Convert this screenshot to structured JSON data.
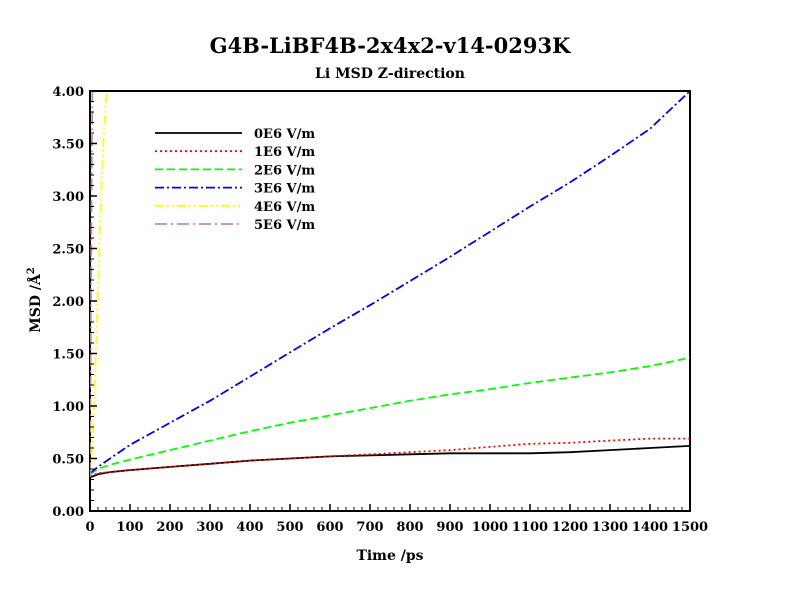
{
  "chart_data": {
    "type": "line",
    "title": "G4B-LiBF4B-2x4x2-v14-0293K",
    "subtitle": "Li MSD Z-direction",
    "xlabel": "Time /ps",
    "ylabel_main": "MSD /Å",
    "ylabel_sup": "2",
    "xlim": [
      0,
      1500
    ],
    "ylim": [
      0,
      4.0
    ],
    "xticks": [
      0,
      100,
      200,
      300,
      400,
      500,
      600,
      700,
      800,
      900,
      1000,
      1100,
      1200,
      1300,
      1400,
      1500
    ],
    "yticks": [
      "0.00",
      "0.50",
      "1.00",
      "1.50",
      "2.00",
      "2.50",
      "3.00",
      "3.50",
      "4.00"
    ],
    "grid": false,
    "legend_position": "top-left",
    "series": [
      {
        "name": "0E6 V/m",
        "color": "#000000",
        "dash": "solid",
        "x": [
          0,
          20,
          50,
          100,
          200,
          300,
          400,
          500,
          600,
          700,
          800,
          900,
          1000,
          1100,
          1200,
          1300,
          1400,
          1500
        ],
        "y": [
          0.32,
          0.35,
          0.37,
          0.39,
          0.42,
          0.45,
          0.48,
          0.5,
          0.52,
          0.53,
          0.54,
          0.55,
          0.55,
          0.55,
          0.56,
          0.58,
          0.6,
          0.62
        ]
      },
      {
        "name": "1E6 V/m",
        "color": "#ff0000",
        "dash": "dotted",
        "x": [
          0,
          20,
          50,
          100,
          200,
          300,
          400,
          500,
          600,
          700,
          800,
          900,
          1000,
          1100,
          1200,
          1300,
          1400,
          1500
        ],
        "y": [
          0.33,
          0.36,
          0.37,
          0.39,
          0.42,
          0.45,
          0.48,
          0.5,
          0.52,
          0.54,
          0.56,
          0.58,
          0.61,
          0.64,
          0.65,
          0.67,
          0.69,
          0.69
        ]
      },
      {
        "name": "2E6 V/m",
        "color": "#00ff00",
        "dash": "dashed",
        "x": [
          0,
          20,
          50,
          100,
          200,
          300,
          400,
          500,
          600,
          700,
          800,
          900,
          1000,
          1100,
          1200,
          1300,
          1400,
          1500
        ],
        "y": [
          0.35,
          0.4,
          0.44,
          0.49,
          0.58,
          0.67,
          0.76,
          0.84,
          0.91,
          0.98,
          1.05,
          1.11,
          1.16,
          1.22,
          1.27,
          1.32,
          1.38,
          1.46
        ]
      },
      {
        "name": "3E6 V/m",
        "color": "#0000ff",
        "dash": "dashdot",
        "x": [
          0,
          20,
          50,
          100,
          200,
          300,
          400,
          500,
          600,
          700,
          800,
          900,
          1000,
          1100,
          1200,
          1300,
          1400,
          1500
        ],
        "y": [
          0.36,
          0.42,
          0.5,
          0.63,
          0.84,
          1.05,
          1.28,
          1.51,
          1.74,
          1.96,
          2.19,
          2.42,
          2.66,
          2.9,
          3.13,
          3.38,
          3.64,
          4.0
        ]
      },
      {
        "name": "4E6 V/m",
        "color": "#ffff00",
        "dash": "dashdotdot",
        "x": [
          0,
          5,
          10,
          15,
          20,
          25,
          30,
          35,
          40,
          43
        ],
        "y": [
          0.33,
          0.55,
          0.95,
          1.5,
          2.1,
          2.7,
          3.2,
          3.6,
          3.9,
          4.0
        ]
      },
      {
        "name": "5E6 V/m",
        "color": "#c09090",
        "dash": "longdashdot",
        "x": [
          0,
          1,
          2,
          3,
          4,
          5,
          6
        ],
        "y": [
          0.33,
          1.0,
          1.7,
          2.4,
          3.1,
          3.6,
          4.0
        ]
      }
    ]
  }
}
